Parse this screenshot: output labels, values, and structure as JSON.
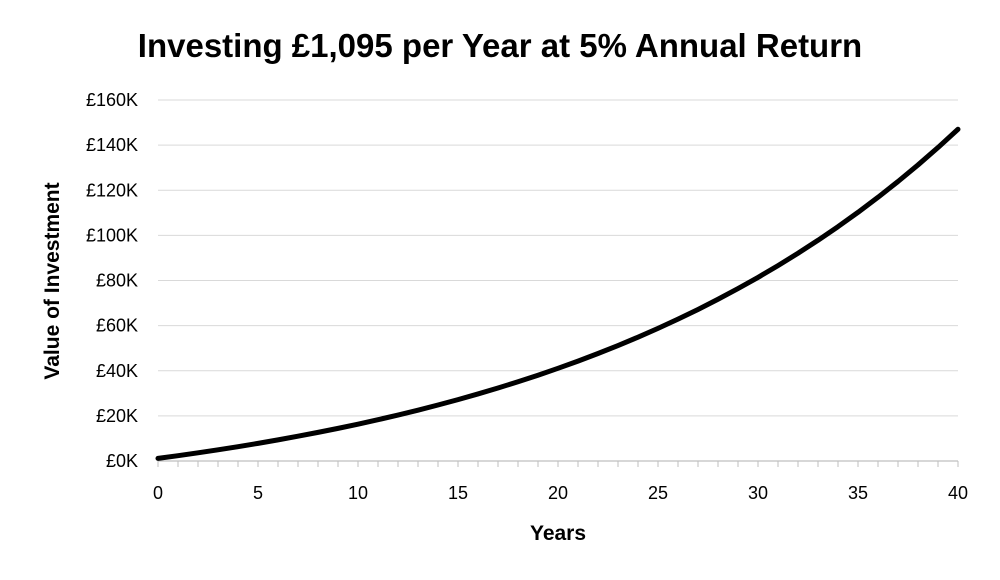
{
  "chart_data": {
    "type": "line",
    "title": "Investing £1,095 per Year at 5% Annual Return",
    "xlabel": "Years",
    "ylabel": "Value of Investment",
    "xlim": [
      0,
      40
    ],
    "ylim": [
      0,
      160000
    ],
    "x_ticks": [
      "0",
      "5",
      "10",
      "15",
      "20",
      "25",
      "30",
      "35",
      "40"
    ],
    "y_ticks": [
      "£0K",
      "£20K",
      "£40K",
      "£60K",
      "£80K",
      "£100K",
      "£120K",
      "£140K",
      "£160K"
    ],
    "grid": true,
    "legend": "none",
    "series": [
      {
        "color": "#000000",
        "x": [
          0,
          1,
          2,
          3,
          4,
          5,
          6,
          7,
          8,
          9,
          10,
          11,
          12,
          13,
          14,
          15,
          16,
          17,
          18,
          19,
          20,
          21,
          22,
          23,
          24,
          25,
          26,
          27,
          28,
          29,
          30,
          31,
          32,
          33,
          34,
          35,
          36,
          37,
          38,
          39,
          40
        ],
        "values": [
          1150,
          2357,
          3625,
          4956,
          6354,
          7821,
          9363,
          10981,
          12680,
          14464,
          16338,
          18305,
          20370,
          22539,
          24816,
          27207,
          29717,
          32353,
          35121,
          38027,
          41079,
          44283,
          47647,
          51180,
          54889,
          58783,
          62873,
          67166,
          71675,
          76408,
          81379,
          86598,
          92078,
          97832,
          103874,
          110218,
          116879,
          123872,
          131216,
          138927,
          147023
        ]
      }
    ]
  }
}
